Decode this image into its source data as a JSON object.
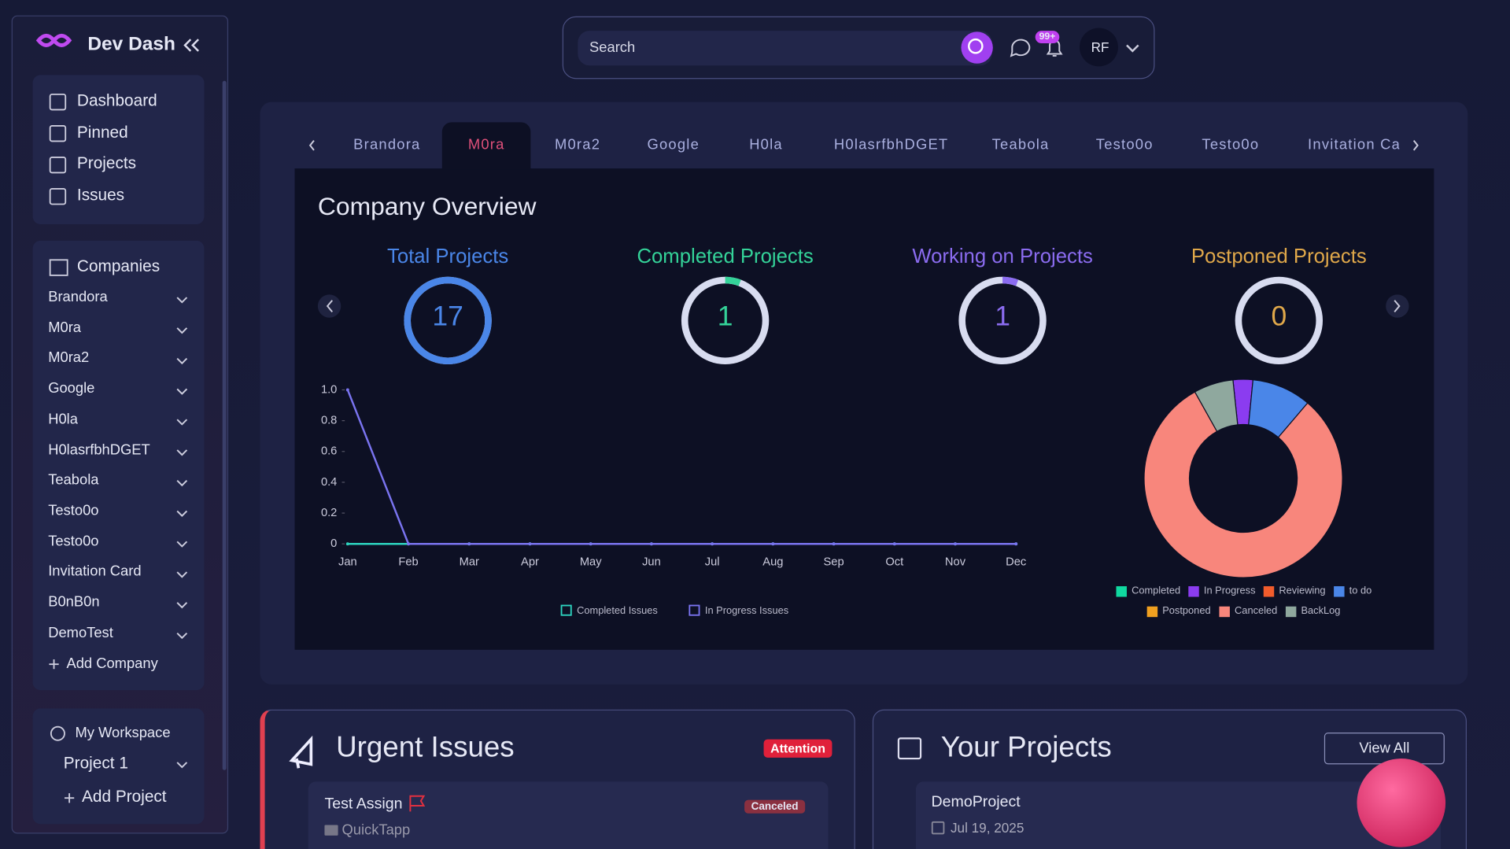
{
  "sidebar": {
    "brand": "Dev Dash",
    "nav": [
      "Dashboard",
      "Pinned",
      "Projects",
      "Issues"
    ],
    "companies_title": "Companies",
    "companies": [
      "Brandora",
      "M0ra",
      "M0ra2",
      "Google",
      "H0la",
      "H0lasrfbhDGET",
      "Teabola",
      "Testo0o",
      "Testo0o",
      "Invitation Card",
      "B0nB0n",
      "DemoTest"
    ],
    "add_company": "Add Company",
    "workspace_title": "My Workspace",
    "projects": [
      "Project 1"
    ],
    "add_project": "Add Project"
  },
  "topbar": {
    "search_placeholder": "Search",
    "notification_badge": "99+",
    "avatar": "RF"
  },
  "tabs": {
    "items": [
      "Brandora",
      "M0ra",
      "M0ra2",
      "Google",
      "H0la",
      "H0lasrfbhDGET",
      "Teabola",
      "Testo0o",
      "Testo0o",
      "Invitation Card"
    ],
    "active": 1
  },
  "overview": {
    "title": "Company Overview",
    "stats": [
      {
        "label": "Total Projects",
        "value": 17,
        "color": "#4a86e8"
      },
      {
        "label": "Completed Projects",
        "value": 1,
        "color": "#34d399"
      },
      {
        "label": "Working on Projects",
        "value": 1,
        "color": "#8b6cf0"
      },
      {
        "label": "Postponed Projects",
        "value": 0,
        "color": "#e0a84a"
      }
    ]
  },
  "line_chart": {
    "type": "line",
    "categories": [
      "Jan",
      "Feb",
      "Mar",
      "Apr",
      "May",
      "Jun",
      "Jul",
      "Aug",
      "Sep",
      "Oct",
      "Nov",
      "Dec"
    ],
    "ylim": [
      0,
      1
    ],
    "yticks": [
      0,
      {
        "value": 0.2,
        "label": "0.2"
      },
      {
        "value": 0.4,
        "label": "0.4"
      },
      {
        "value": 0.6,
        "label": "0.6"
      },
      {
        "value": 0.8,
        "label": "0.8"
      },
      {
        "value": 1,
        "label": "1.0"
      }
    ],
    "series": [
      {
        "name": "Completed Issues",
        "color": "#2dd4bf",
        "values": [
          0,
          0,
          0,
          0,
          0,
          0,
          0,
          0,
          0,
          0,
          0,
          0
        ]
      },
      {
        "name": "In Progress Issues",
        "color": "#7a74f0",
        "values": [
          1,
          0,
          0,
          0,
          0,
          0,
          0,
          0,
          0,
          0,
          0,
          0
        ]
      }
    ]
  },
  "donut_chart": {
    "type": "pie",
    "categories": [
      "Completed",
      "In Progress",
      "Reviewing",
      "to do",
      "Postponed",
      "Canceled",
      "BackLog"
    ],
    "colors": [
      "#10d9a0",
      "#8b3cf0",
      "#f25c2c",
      "#4a86e8",
      "#f0a020",
      "#f8867c",
      "#8fa89e"
    ],
    "values": [
      0,
      1,
      0,
      3,
      0,
      25,
      2
    ]
  },
  "urgent": {
    "title": "Urgent Issues",
    "badge": "Attention",
    "issue": {
      "title": "Test Assign",
      "company": "QuickTapp",
      "status": "Canceled"
    }
  },
  "projects": {
    "title": "Your Projects",
    "view_all": "View All",
    "project": {
      "name": "DemoProject",
      "date": "Jul 19, 2025"
    }
  }
}
